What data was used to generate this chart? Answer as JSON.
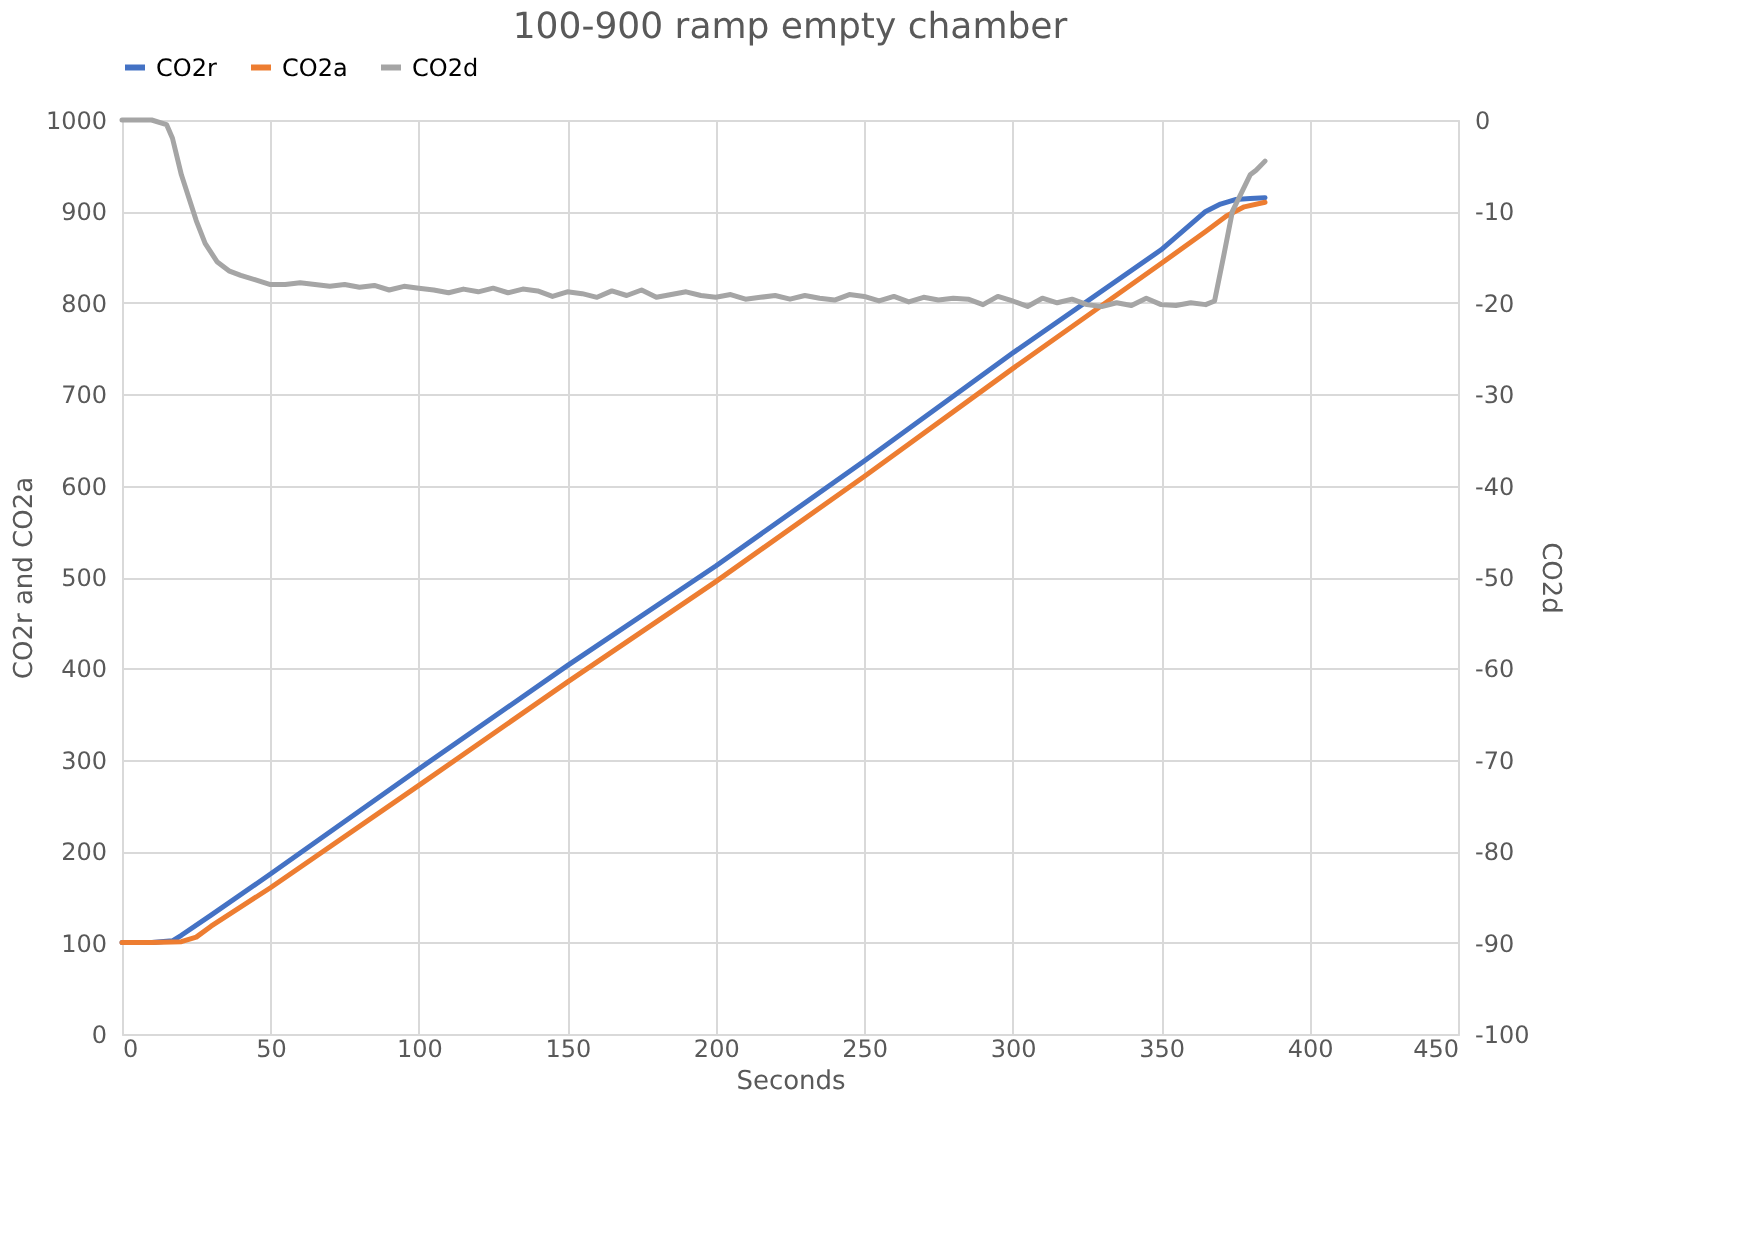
{
  "chart_data": {
    "type": "line",
    "title": "100-900 ramp empty chamber",
    "xlabel": "Seconds",
    "ylabel": "CO2r and CO2a",
    "y2label": "CO2d",
    "xlim": [
      0,
      450
    ],
    "xticks": [
      0,
      50,
      100,
      150,
      200,
      250,
      300,
      350,
      400,
      450
    ],
    "ylim": [
      0,
      1000
    ],
    "yticks": [
      0,
      100,
      200,
      300,
      400,
      500,
      600,
      700,
      800,
      900,
      1000
    ],
    "y2lim": [
      -100,
      0
    ],
    "y2ticks": [
      -100,
      -90,
      -80,
      -70,
      -60,
      -50,
      -40,
      -30,
      -20,
      -10,
      0
    ],
    "grid": true,
    "legend": "top",
    "marker": "none",
    "line_style": "solid",
    "series": [
      {
        "name": "CO2r",
        "color": "#4472c4",
        "x": [
          0,
          10,
          17,
          20,
          30,
          50,
          100,
          150,
          200,
          250,
          300,
          350,
          365,
          370,
          375,
          380,
          385
        ],
        "values": [
          100,
          100,
          102,
          108,
          130,
          175,
          290,
          403,
          512,
          627,
          745,
          858,
          900,
          908,
          913,
          914,
          915
        ]
      },
      {
        "name": "CO2a",
        "color": "#ed7d31",
        "x": [
          0,
          10,
          20,
          25,
          30,
          50,
          100,
          150,
          200,
          250,
          300,
          350,
          365,
          372,
          378,
          385
        ],
        "values": [
          100,
          100,
          101,
          106,
          118,
          160,
          272,
          385,
          495,
          610,
          728,
          843,
          878,
          895,
          905,
          910
        ]
      },
      {
        "name": "CO2d",
        "color": "#a5a5a5",
        "axis": "y2",
        "x": [
          0,
          5,
          10,
          15,
          17,
          20,
          25,
          28,
          32,
          36,
          40,
          45,
          50,
          55,
          60,
          65,
          70,
          75,
          80,
          85,
          90,
          95,
          100,
          105,
          110,
          115,
          120,
          125,
          130,
          135,
          140,
          145,
          150,
          155,
          160,
          165,
          170,
          175,
          180,
          185,
          190,
          195,
          200,
          205,
          210,
          215,
          220,
          225,
          230,
          235,
          240,
          245,
          250,
          255,
          260,
          265,
          270,
          275,
          280,
          285,
          290,
          295,
          300,
          305,
          310,
          315,
          320,
          325,
          330,
          335,
          340,
          345,
          350,
          355,
          360,
          365,
          368,
          371,
          374,
          377,
          380,
          382,
          385
        ],
        "values": [
          0,
          0,
          0,
          -0.5,
          -2,
          -6,
          -11,
          -13.5,
          -15.5,
          -16.5,
          -17,
          -17.5,
          -18,
          -18,
          -17.8,
          -18,
          -18.2,
          -18,
          -18.3,
          -18.1,
          -18.6,
          -18.2,
          -18.4,
          -18.6,
          -18.9,
          -18.5,
          -18.8,
          -18.4,
          -18.9,
          -18.5,
          -18.7,
          -19.3,
          -18.8,
          -19,
          -19.4,
          -18.7,
          -19.2,
          -18.6,
          -19.4,
          -19.1,
          -18.8,
          -19.2,
          -19.4,
          -19.1,
          -19.6,
          -19.4,
          -19.2,
          -19.6,
          -19.2,
          -19.5,
          -19.7,
          -19.1,
          -19.3,
          -19.8,
          -19.3,
          -19.9,
          -19.4,
          -19.7,
          -19.5,
          -19.6,
          -20.2,
          -19.3,
          -19.8,
          -20.4,
          -19.5,
          -20,
          -19.6,
          -20.2,
          -20.4,
          -20,
          -20.3,
          -19.5,
          -20.2,
          -20.3,
          -20,
          -20.2,
          -19.8,
          -15,
          -10,
          -8,
          -6,
          -5.5,
          -4.5
        ]
      }
    ]
  }
}
